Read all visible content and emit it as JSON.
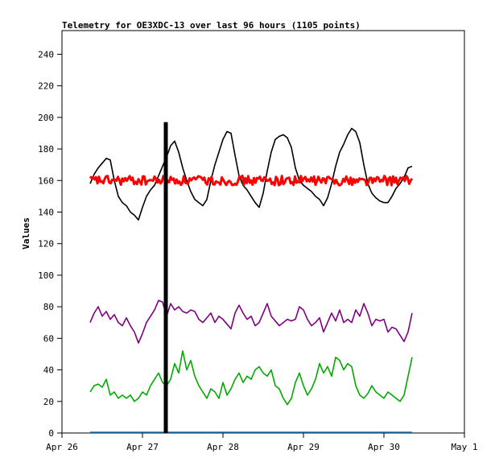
{
  "chart_data": {
    "type": "line",
    "title": "Telemetry for OE3XDC-13 over last 96 hours (1105 points)",
    "ylabel": "Values",
    "xlabel": "",
    "ylim": [
      0,
      255
    ],
    "yticks": [
      0,
      20,
      40,
      60,
      80,
      100,
      120,
      140,
      160,
      180,
      200,
      220,
      240
    ],
    "xlim": [
      "Apr 26",
      "May 1"
    ],
    "xticks": [
      "Apr 26",
      "Apr 27",
      "Apr 28",
      "Apr 29",
      "Apr 30",
      "May 1"
    ],
    "grid": false,
    "vertical_marker": {
      "x_days": 1.29,
      "y_top": 197,
      "color": "#000000"
    },
    "series": [
      {
        "color": "#000000",
        "x_days": [
          0.35,
          0.4,
          0.45,
          0.5,
          0.55,
          0.6,
          0.65,
          0.7,
          0.75,
          0.8,
          0.85,
          0.9,
          0.95,
          1.0,
          1.05,
          1.1,
          1.15,
          1.2,
          1.25,
          1.3,
          1.35,
          1.4,
          1.45,
          1.5,
          1.55,
          1.6,
          1.65,
          1.7,
          1.75,
          1.8,
          1.85,
          1.9,
          1.95,
          2.0,
          2.05,
          2.1,
          2.15,
          2.2,
          2.25,
          2.3,
          2.35,
          2.4,
          2.45,
          2.5,
          2.55,
          2.6,
          2.65,
          2.7,
          2.75,
          2.8,
          2.85,
          2.9,
          2.95,
          3.0,
          3.05,
          3.1,
          3.15,
          3.2,
          3.25,
          3.3,
          3.35,
          3.4,
          3.45,
          3.5,
          3.55,
          3.6,
          3.65,
          3.7,
          3.75,
          3.8,
          3.85,
          3.9,
          3.95,
          4.0,
          4.05,
          4.1,
          4.15,
          4.2,
          4.25,
          4.3,
          4.35
        ],
        "values": [
          158,
          164,
          168,
          171,
          174,
          173,
          160,
          150,
          146,
          144,
          140,
          138,
          135,
          143,
          150,
          154,
          157,
          163,
          169,
          175,
          182,
          185,
          178,
          168,
          160,
          153,
          148,
          146,
          144,
          148,
          160,
          170,
          178,
          186,
          191,
          190,
          176,
          163,
          157,
          154,
          150,
          146,
          143,
          152,
          166,
          178,
          186,
          188,
          189,
          187,
          181,
          168,
          160,
          157,
          155,
          153,
          150,
          148,
          144,
          149,
          158,
          169,
          178,
          183,
          189,
          193,
          191,
          184,
          170,
          158,
          152,
          149,
          147,
          146,
          146,
          150,
          155,
          158,
          162,
          168,
          169
        ]
      },
      {
        "color": "#ff0000",
        "x_days": [
          0.35,
          4.35
        ],
        "values": [
          160,
          160
        ],
        "jitter": 3
      },
      {
        "color": "#800080",
        "x_days": [
          0.35,
          0.4,
          0.45,
          0.5,
          0.55,
          0.6,
          0.65,
          0.7,
          0.75,
          0.8,
          0.85,
          0.9,
          0.95,
          1.0,
          1.05,
          1.1,
          1.15,
          1.2,
          1.25,
          1.3,
          1.35,
          1.4,
          1.45,
          1.5,
          1.55,
          1.6,
          1.65,
          1.7,
          1.75,
          1.8,
          1.85,
          1.9,
          1.95,
          2.0,
          2.05,
          2.1,
          2.15,
          2.2,
          2.25,
          2.3,
          2.35,
          2.4,
          2.45,
          2.5,
          2.55,
          2.6,
          2.65,
          2.7,
          2.75,
          2.8,
          2.85,
          2.9,
          2.95,
          3.0,
          3.05,
          3.1,
          3.15,
          3.2,
          3.25,
          3.3,
          3.35,
          3.4,
          3.45,
          3.5,
          3.55,
          3.6,
          3.65,
          3.7,
          3.75,
          3.8,
          3.85,
          3.9,
          3.95,
          4.0,
          4.05,
          4.1,
          4.15,
          4.2,
          4.25,
          4.3,
          4.35
        ],
        "values": [
          70,
          76,
          80,
          74,
          77,
          72,
          75,
          70,
          68,
          73,
          68,
          64,
          57,
          63,
          70,
          74,
          78,
          84,
          83,
          74,
          82,
          78,
          80,
          77,
          76,
          78,
          77,
          72,
          70,
          73,
          76,
          70,
          74,
          72,
          69,
          66,
          76,
          81,
          76,
          72,
          74,
          68,
          70,
          76,
          82,
          74,
          71,
          68,
          70,
          72,
          71,
          72,
          80,
          78,
          72,
          68,
          70,
          73,
          64,
          70,
          76,
          71,
          78,
          70,
          72,
          70,
          78,
          74,
          82,
          76,
          68,
          72,
          71,
          72,
          64,
          67,
          66,
          62,
          58,
          64,
          76
        ]
      },
      {
        "color": "#00aa00",
        "x_days": [
          0.35,
          0.4,
          0.45,
          0.5,
          0.55,
          0.6,
          0.65,
          0.7,
          0.75,
          0.8,
          0.85,
          0.9,
          0.95,
          1.0,
          1.05,
          1.1,
          1.15,
          1.2,
          1.25,
          1.3,
          1.35,
          1.4,
          1.45,
          1.5,
          1.55,
          1.6,
          1.65,
          1.7,
          1.75,
          1.8,
          1.85,
          1.9,
          1.95,
          2.0,
          2.05,
          2.1,
          2.15,
          2.2,
          2.25,
          2.3,
          2.35,
          2.4,
          2.45,
          2.5,
          2.55,
          2.6,
          2.65,
          2.7,
          2.75,
          2.8,
          2.85,
          2.9,
          2.95,
          3.0,
          3.05,
          3.1,
          3.15,
          3.2,
          3.25,
          3.3,
          3.35,
          3.4,
          3.45,
          3.5,
          3.55,
          3.6,
          3.65,
          3.7,
          3.75,
          3.8,
          3.85,
          3.9,
          3.95,
          4.0,
          4.05,
          4.1,
          4.15,
          4.2,
          4.25,
          4.3,
          4.35
        ],
        "values": [
          26,
          30,
          31,
          29,
          34,
          24,
          26,
          22,
          24,
          22,
          24,
          20,
          22,
          26,
          24,
          30,
          34,
          38,
          32,
          30,
          34,
          44,
          38,
          52,
          40,
          46,
          36,
          30,
          26,
          22,
          28,
          26,
          22,
          32,
          24,
          28,
          34,
          38,
          32,
          36,
          34,
          40,
          42,
          38,
          36,
          40,
          30,
          28,
          22,
          18,
          22,
          32,
          38,
          30,
          24,
          28,
          34,
          44,
          38,
          42,
          36,
          48,
          46,
          40,
          44,
          42,
          30,
          24,
          22,
          25,
          30,
          26,
          24,
          22,
          26,
          24,
          22,
          20,
          24,
          36,
          48
        ]
      },
      {
        "color": "#1f7fc0",
        "x_days": [
          0.35,
          4.35
        ],
        "values": [
          0.5,
          0.5
        ]
      }
    ]
  }
}
